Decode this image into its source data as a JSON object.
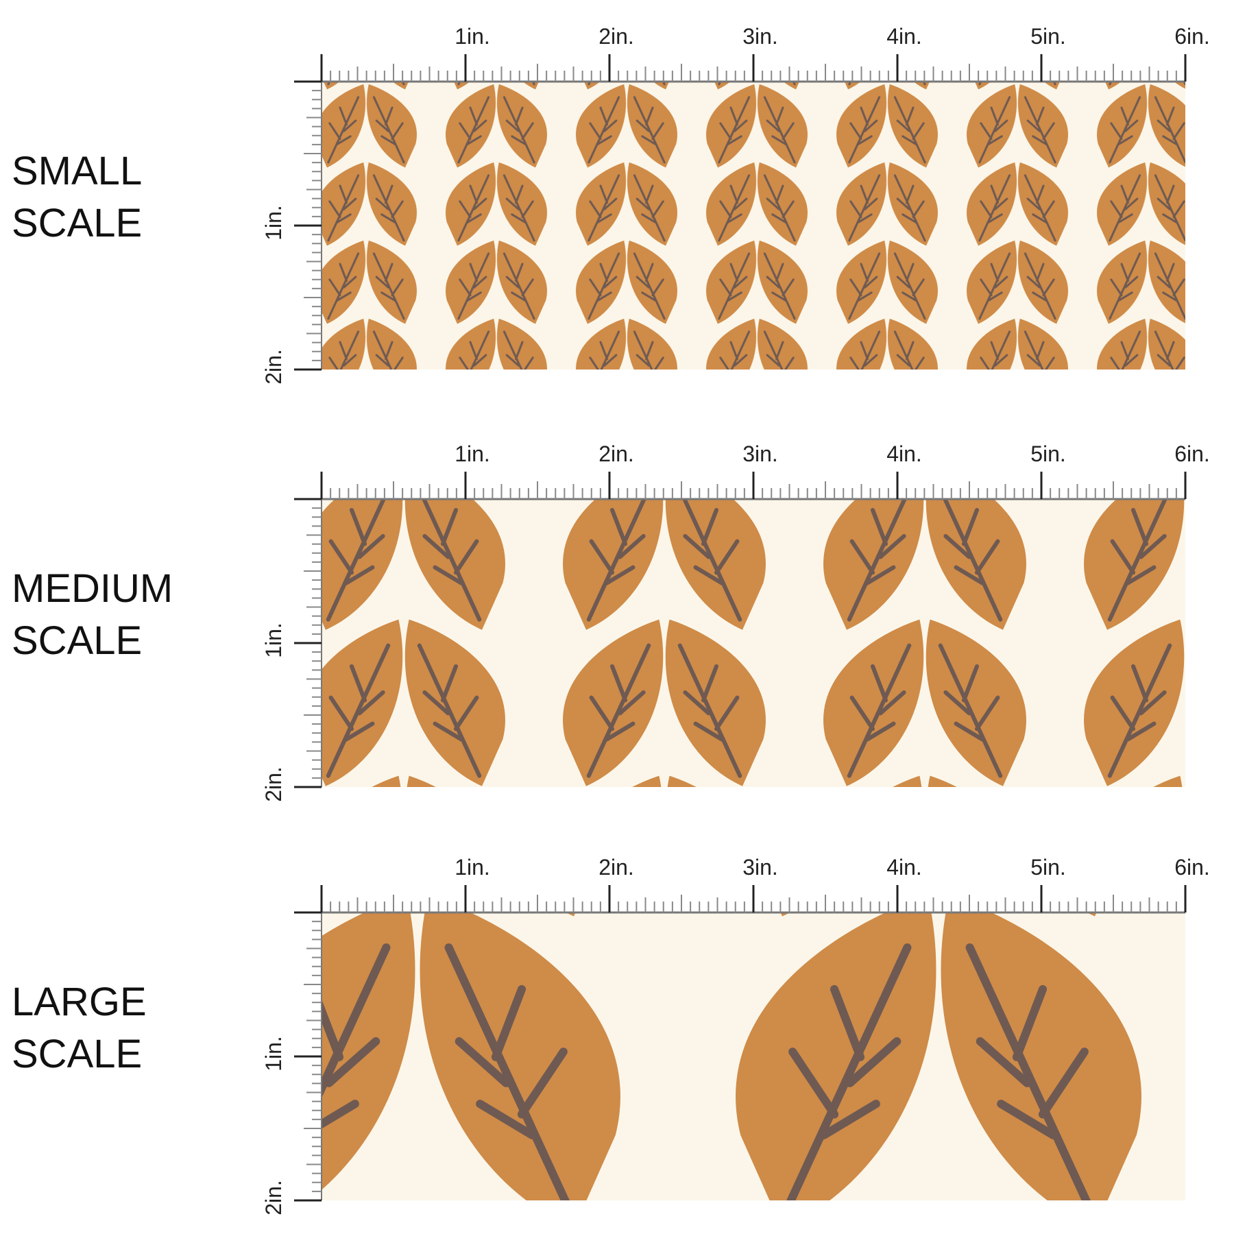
{
  "panels": [
    {
      "label": [
        "SMALL",
        "SCALE"
      ],
      "ruler_x": [
        "1in.",
        "2in.",
        "3in.",
        "4in.",
        "5in.",
        "6in."
      ],
      "ruler_y": [
        "1in.",
        "2in."
      ]
    },
    {
      "label": [
        "MEDIUM",
        "SCALE"
      ],
      "ruler_x": [
        "1in.",
        "2in.",
        "3in.",
        "4in.",
        "5in.",
        "6in."
      ],
      "ruler_y": [
        "1in.",
        "2in."
      ]
    },
    {
      "label": [
        "LARGE",
        "SCALE"
      ],
      "ruler_x": [
        "1in.",
        "2in.",
        "3in.",
        "4in.",
        "5in.",
        "6in."
      ],
      "ruler_y": [
        "1in.",
        "2in."
      ]
    }
  ]
}
